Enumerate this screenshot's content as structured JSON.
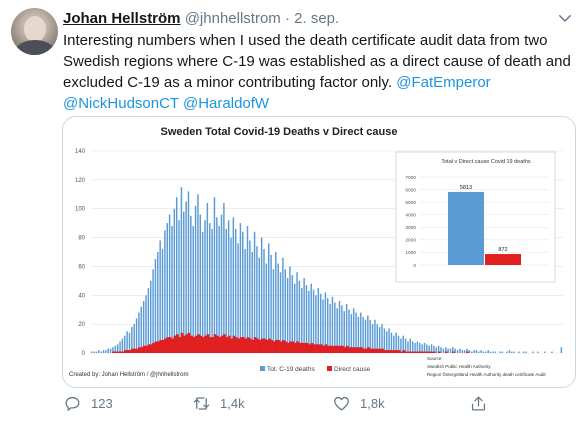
{
  "tweet": {
    "author_name": "Johan Hellström",
    "author_handle": "@jhnhellstrom",
    "separator": "·",
    "date": "2. sep.",
    "text_main": "Interesting numbers when I used the death certificate audit data from two Swedish regions where C-19 was established as a direct cause of death and excluded C-19 as a minor contributing factor only.",
    "mentions": [
      "@FatEmperor",
      "@NickHudsonCT",
      "@HaraldofW"
    ]
  },
  "actions": {
    "replies": "123",
    "retweets": "1,4k",
    "likes": "1,8k"
  },
  "icons": {
    "more": "chevron-down-icon",
    "reply": "reply-icon",
    "retweet": "retweet-icon",
    "like": "heart-icon",
    "share": "share-icon"
  },
  "colors": {
    "link": "#1b95e0",
    "muted": "#657786",
    "total_series": "#5b9bd5",
    "direct_series": "#e02020"
  },
  "chart_data": [
    {
      "type": "bar",
      "title": "Sweden Total Covid-19 Deaths v Direct cause",
      "ylim": [
        0,
        140
      ],
      "yticks": [
        "0",
        "20",
        "40",
        "60",
        "80",
        "100",
        "120",
        "140"
      ],
      "series": [
        {
          "name": "Tot. C-19 deaths",
          "values": [
            1,
            1,
            1,
            2,
            1,
            2,
            2,
            3,
            3,
            4,
            5,
            6,
            8,
            10,
            12,
            15,
            14,
            18,
            20,
            24,
            28,
            32,
            36,
            40,
            45,
            50,
            58,
            65,
            70,
            78,
            72,
            85,
            90,
            96,
            88,
            100,
            108,
            92,
            115,
            98,
            105,
            112,
            95,
            88,
            102,
            110,
            96,
            84,
            92,
            104,
            90,
            86,
            108,
            94,
            88,
            96,
            104,
            86,
            92,
            80,
            94,
            86,
            76,
            90,
            84,
            72,
            88,
            78,
            70,
            84,
            74,
            66,
            80,
            72,
            62,
            76,
            68,
            58,
            70,
            62,
            56,
            66,
            58,
            52,
            60,
            54,
            48,
            56,
            50,
            45,
            52,
            47,
            43,
            48,
            44,
            40,
            45,
            41,
            37,
            42,
            38,
            34,
            39,
            35,
            31,
            36,
            33,
            29,
            34,
            30,
            27,
            31,
            28,
            25,
            28,
            25,
            23,
            26,
            23,
            20,
            23,
            20,
            18,
            20,
            17,
            15,
            17,
            14,
            12,
            14,
            12,
            10,
            12,
            10,
            8,
            10,
            8,
            7,
            8,
            7,
            6,
            7,
            6,
            5,
            6,
            5,
            4,
            5,
            4,
            3,
            4,
            3,
            3,
            4,
            3,
            2,
            3,
            2,
            2,
            3,
            2,
            1,
            2,
            2,
            1,
            2,
            1,
            1,
            2,
            1,
            1,
            1,
            0,
            1,
            1,
            0,
            1,
            2,
            1,
            1,
            0,
            1,
            0,
            1,
            1,
            0,
            0,
            1,
            0,
            1,
            0,
            0,
            1,
            0,
            0,
            1,
            0,
            0,
            0,
            4
          ]
        },
        {
          "name": "Direct cause",
          "values": [
            0,
            0,
            0,
            0,
            0,
            0,
            0,
            0,
            0,
            1,
            1,
            1,
            1,
            1,
            2,
            2,
            2,
            3,
            3,
            3,
            4,
            4,
            5,
            5,
            6,
            6,
            7,
            8,
            8,
            9,
            9,
            10,
            11,
            11,
            10,
            12,
            13,
            11,
            14,
            12,
            13,
            14,
            12,
            11,
            12,
            13,
            12,
            11,
            12,
            13,
            11,
            11,
            13,
            12,
            11,
            12,
            13,
            11,
            12,
            10,
            12,
            11,
            10,
            11,
            11,
            10,
            11,
            10,
            9,
            11,
            10,
            9,
            10,
            10,
            9,
            10,
            9,
            8,
            9,
            9,
            8,
            9,
            8,
            7,
            8,
            8,
            7,
            8,
            7,
            7,
            7,
            7,
            6,
            7,
            6,
            6,
            6,
            6,
            5,
            6,
            5,
            5,
            5,
            5,
            5,
            5,
            5,
            4,
            5,
            4,
            4,
            4,
            4,
            4,
            4,
            3,
            3,
            4,
            3,
            3,
            3,
            3,
            3,
            3,
            2,
            2,
            2,
            2,
            2,
            2,
            2,
            1,
            2,
            1,
            1,
            1,
            1,
            1,
            1,
            1,
            1,
            1,
            1,
            1,
            1,
            1,
            0,
            1,
            0,
            0,
            1,
            0,
            0,
            1,
            0,
            0,
            0,
            0,
            0,
            1,
            0,
            0,
            0,
            0,
            0,
            0,
            0,
            0,
            0,
            0,
            0,
            0,
            0,
            0,
            0,
            0,
            0,
            0,
            0,
            0,
            0,
            0,
            0,
            0,
            0,
            0,
            0,
            0,
            0,
            0,
            0,
            0,
            0,
            0,
            0,
            0,
            0,
            0,
            0,
            0
          ]
        }
      ],
      "legend": [
        "Tot. C-19 deaths",
        "Direct cause"
      ],
      "legend_position": "bottom-center",
      "credit": "Created by: Johan Hellström / @jhnhellstrom",
      "source_lines": [
        "Source:",
        "Swedish Public Health Authority",
        "Region Östergötland Health Authority death certificate Audit"
      ],
      "grid": true
    },
    {
      "type": "bar",
      "title": "Total v Direct cause Covid 19 deaths",
      "ylim": [
        0,
        7000
      ],
      "yticks": [
        "0",
        "1000",
        "2000",
        "3000",
        "4000",
        "5000",
        "6000",
        "7000"
      ],
      "categories": [
        "Total",
        "Direct cause"
      ],
      "values": [
        5813,
        872
      ],
      "value_labels": [
        "5813",
        "872"
      ],
      "legend_position": "inset-top-right",
      "grid": true
    }
  ]
}
